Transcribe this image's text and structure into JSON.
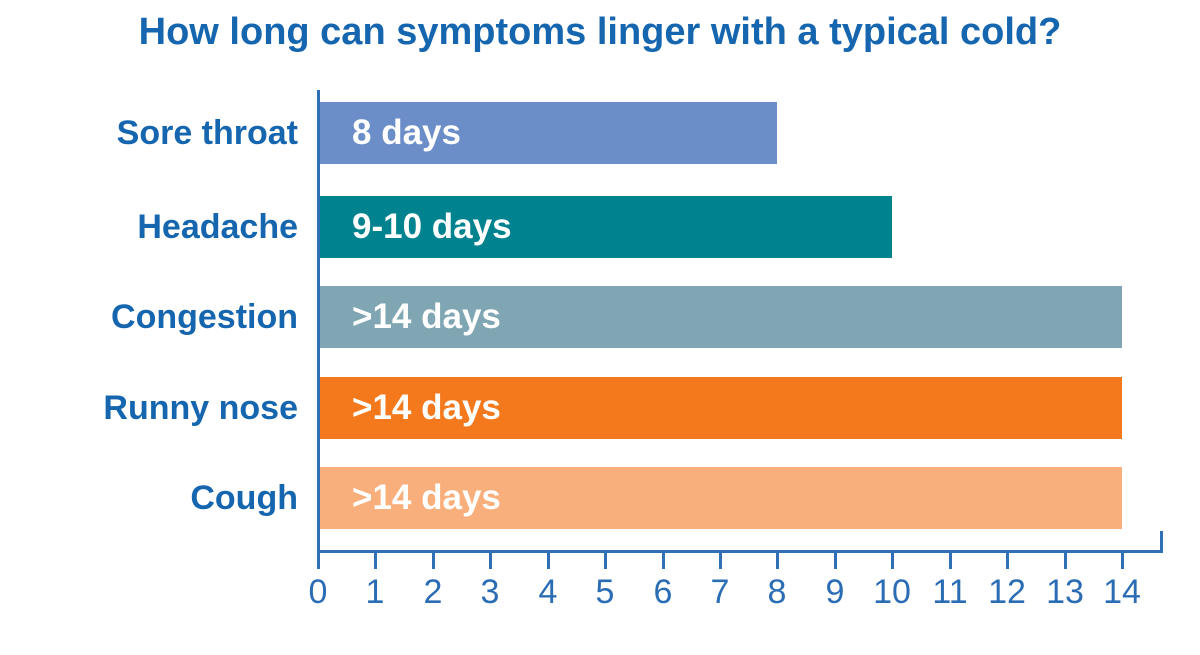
{
  "title": "How long can symptoms linger with a typical cold?",
  "colors": {
    "title_text": "#1566AF",
    "category_text": "#1566AF",
    "axis": "#2E6FB6",
    "tick_text": "#2B6DB4",
    "bar_value_text": "#FFFFFF"
  },
  "chart_data": {
    "type": "bar",
    "orientation": "horizontal",
    "title": "How long can symptoms linger with a typical cold?",
    "categories": [
      "Sore throat",
      "Headache",
      "Congestion",
      "Runny nose",
      "Cough"
    ],
    "bars": [
      {
        "category": "Sore throat",
        "label": "8 days",
        "value_days": 8,
        "color": "#6B8EC9"
      },
      {
        "category": "Headache",
        "label": "9-10 days",
        "value_days": 10,
        "color": "#00828F"
      },
      {
        "category": "Congestion",
        "label": ">14 days",
        "value_days": 14,
        "color": "#7FA6B2"
      },
      {
        "category": "Runny nose",
        "label": ">14 days",
        "value_days": 14,
        "color": "#F4791D"
      },
      {
        "category": "Cough",
        "label": ">14 days",
        "value_days": 14,
        "color": "#F9AF7B"
      }
    ],
    "xlim": [
      0,
      14
    ],
    "x_ticks": [
      "0",
      "1",
      "2",
      "3",
      "4",
      "5",
      "6",
      "7",
      "8",
      "9",
      "10",
      "11",
      "12",
      "13",
      "14"
    ],
    "xlabel": "",
    "ylabel": "",
    "grid": false,
    "legend": false
  }
}
